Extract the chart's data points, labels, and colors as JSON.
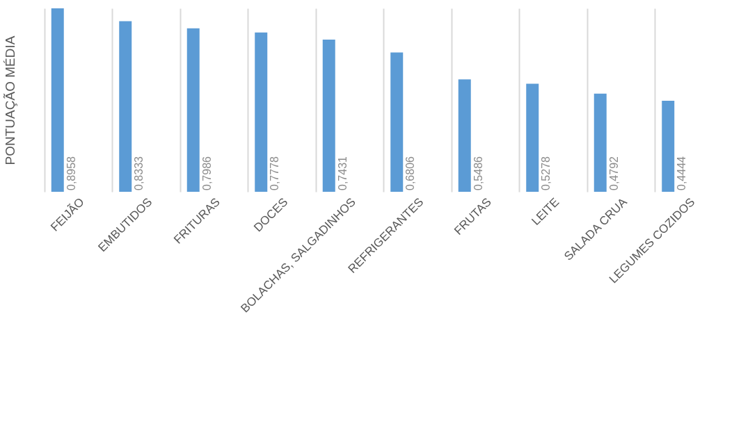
{
  "chart_data": {
    "type": "bar",
    "ylabel": "PONTUAÇÃO MÉDIA",
    "categories": [
      "FEIJÃO",
      "EMBUTIDOS",
      "FRITURAS",
      "DOCES",
      "BOLACHAS, SALGADINHOS",
      "REFRIGERANTES",
      "FRUTAS",
      "LEITE",
      "SALADA CRUA",
      "LEGUMES COZIDOS"
    ],
    "values": [
      0.8958,
      0.8333,
      0.7986,
      0.7778,
      0.7431,
      0.6806,
      0.5486,
      0.5278,
      0.4792,
      0.4444
    ],
    "value_labels": [
      "0,8958",
      "0,8333",
      "0,7986",
      "0,7778",
      "0,7431",
      "0,6806",
      "0,5486",
      "0,5278",
      "0,4792",
      "0,4444"
    ],
    "color": "#5b9bd5",
    "grid": "x"
  }
}
